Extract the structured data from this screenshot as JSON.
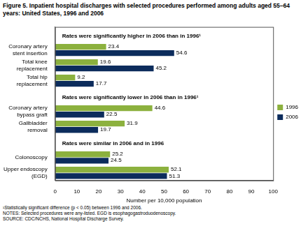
{
  "chart_data": {
    "type": "bar",
    "orientation": "horizontal",
    "title": "Figure 5. Inpatient hospital discharges with selected procedures performed among adults aged 55–64 years: United States, 1996 and 2006",
    "categories": [
      null,
      "Coronary artery\nstent insertion",
      "Total knee\nreplacement",
      "Total hip\nreplacement",
      null,
      "Coronary artery\nbypass graft",
      "Gallbladder\nremoval",
      null,
      "Colonoscopy",
      "Upper endoscopy\n(EGD)"
    ],
    "series": [
      {
        "name": "1996",
        "color": "#8cb13e",
        "values": [
          null,
          23.4,
          19.6,
          9.2,
          null,
          44.6,
          31.9,
          null,
          25.2,
          52.1
        ]
      },
      {
        "name": "2006",
        "color": "#0c2c5c",
        "values": [
          null,
          54.6,
          45.2,
          17.7,
          null,
          22.5,
          19.7,
          null,
          24.5,
          51.3
        ]
      }
    ],
    "annotations": [
      "Rates were significantly higher in 2006 than in 1996¹",
      "Rates were significantly lower in 2006 than in 1996¹",
      "Rates were similar in 2006 and in 1996"
    ],
    "x_label": "Number per 10,000 population",
    "xlim": [
      0,
      100
    ],
    "xticks": [
      0,
      10,
      20,
      30,
      40,
      50,
      60,
      70,
      80,
      90,
      100
    ],
    "grid": false,
    "legend": "right",
    "data_labels": true,
    "footnotes": [
      "¹Statistically significant difference (p < 0.05) between 1996 and 2006.",
      "NOTES: Selected procedures were any-listed. EGD is esophagogastroduodenoscopy.",
      "SOURCE: CDC/NCHS, National Hospital Discharge Survey."
    ]
  }
}
